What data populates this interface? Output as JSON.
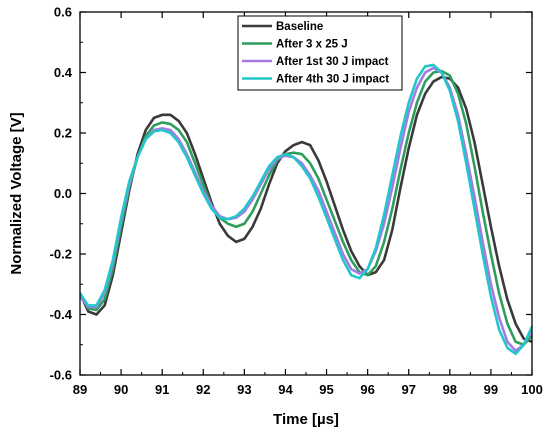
{
  "chart_data": {
    "type": "line",
    "title": "",
    "xlabel": "Time [µs]",
    "ylabel": "Normalized Voltage [V]",
    "xlim": [
      89,
      100
    ],
    "ylim": [
      -0.6,
      0.6
    ],
    "x_ticks": [
      "89",
      "90",
      "91",
      "92",
      "93",
      "94",
      "95",
      "96",
      "97",
      "98",
      "99",
      "100"
    ],
    "y_ticks": [
      "-0.6",
      "-0.4",
      "-0.2",
      "0.0",
      "0.2",
      "0.4",
      "0.6"
    ],
    "grid": false,
    "legend_position": "top-right",
    "series": [
      {
        "name": "Baseline",
        "color": "#3a3a3a",
        "points": [
          [
            89.0,
            -0.33
          ],
          [
            89.2,
            -0.39
          ],
          [
            89.4,
            -0.4
          ],
          [
            89.6,
            -0.37
          ],
          [
            89.8,
            -0.27
          ],
          [
            90.0,
            -0.13
          ],
          [
            90.2,
            0.01
          ],
          [
            90.4,
            0.13
          ],
          [
            90.6,
            0.21
          ],
          [
            90.8,
            0.25
          ],
          [
            91.0,
            0.26
          ],
          [
            91.2,
            0.26
          ],
          [
            91.4,
            0.24
          ],
          [
            91.6,
            0.2
          ],
          [
            91.8,
            0.13
          ],
          [
            92.0,
            0.05
          ],
          [
            92.2,
            -0.03
          ],
          [
            92.4,
            -0.1
          ],
          [
            92.6,
            -0.14
          ],
          [
            92.8,
            -0.16
          ],
          [
            93.0,
            -0.15
          ],
          [
            93.2,
            -0.11
          ],
          [
            93.4,
            -0.05
          ],
          [
            93.6,
            0.03
          ],
          [
            93.8,
            0.1
          ],
          [
            94.0,
            0.14
          ],
          [
            94.2,
            0.16
          ],
          [
            94.4,
            0.17
          ],
          [
            94.6,
            0.16
          ],
          [
            94.8,
            0.11
          ],
          [
            95.0,
            0.04
          ],
          [
            95.2,
            -0.04
          ],
          [
            95.4,
            -0.12
          ],
          [
            95.6,
            -0.19
          ],
          [
            95.8,
            -0.24
          ],
          [
            96.0,
            -0.27
          ],
          [
            96.2,
            -0.26
          ],
          [
            96.4,
            -0.22
          ],
          [
            96.6,
            -0.12
          ],
          [
            96.8,
            0.02
          ],
          [
            97.0,
            0.15
          ],
          [
            97.2,
            0.26
          ],
          [
            97.4,
            0.33
          ],
          [
            97.6,
            0.37
          ],
          [
            97.8,
            0.385
          ],
          [
            98.0,
            0.38
          ],
          [
            98.2,
            0.35
          ],
          [
            98.4,
            0.28
          ],
          [
            98.6,
            0.17
          ],
          [
            98.8,
            0.03
          ],
          [
            99.0,
            -0.11
          ],
          [
            99.2,
            -0.24
          ],
          [
            99.4,
            -0.35
          ],
          [
            99.6,
            -0.43
          ],
          [
            99.8,
            -0.48
          ],
          [
            100.0,
            -0.49
          ]
        ]
      },
      {
        "name": "After 3 x 25 J",
        "color": "#2e9e5b",
        "points": [
          [
            89.0,
            -0.33
          ],
          [
            89.2,
            -0.38
          ],
          [
            89.4,
            -0.385
          ],
          [
            89.6,
            -0.35
          ],
          [
            89.8,
            -0.25
          ],
          [
            90.0,
            -0.11
          ],
          [
            90.2,
            0.02
          ],
          [
            90.4,
            0.12
          ],
          [
            90.6,
            0.19
          ],
          [
            90.8,
            0.225
          ],
          [
            91.0,
            0.235
          ],
          [
            91.2,
            0.23
          ],
          [
            91.4,
            0.21
          ],
          [
            91.6,
            0.17
          ],
          [
            91.8,
            0.1
          ],
          [
            92.0,
            0.03
          ],
          [
            92.2,
            -0.04
          ],
          [
            92.4,
            -0.08
          ],
          [
            92.6,
            -0.1
          ],
          [
            92.8,
            -0.11
          ],
          [
            93.0,
            -0.1
          ],
          [
            93.2,
            -0.06
          ],
          [
            93.4,
            0.0
          ],
          [
            93.6,
            0.06
          ],
          [
            93.8,
            0.11
          ],
          [
            94.0,
            0.13
          ],
          [
            94.2,
            0.135
          ],
          [
            94.4,
            0.13
          ],
          [
            94.6,
            0.1
          ],
          [
            94.8,
            0.05
          ],
          [
            95.0,
            -0.02
          ],
          [
            95.2,
            -0.09
          ],
          [
            95.4,
            -0.16
          ],
          [
            95.6,
            -0.22
          ],
          [
            95.8,
            -0.26
          ],
          [
            96.0,
            -0.27
          ],
          [
            96.2,
            -0.24
          ],
          [
            96.4,
            -0.16
          ],
          [
            96.6,
            -0.05
          ],
          [
            96.8,
            0.08
          ],
          [
            97.0,
            0.2
          ],
          [
            97.2,
            0.3
          ],
          [
            97.4,
            0.37
          ],
          [
            97.6,
            0.4
          ],
          [
            97.8,
            0.405
          ],
          [
            98.0,
            0.39
          ],
          [
            98.2,
            0.33
          ],
          [
            98.4,
            0.23
          ],
          [
            98.6,
            0.09
          ],
          [
            98.8,
            -0.06
          ],
          [
            99.0,
            -0.2
          ],
          [
            99.2,
            -0.33
          ],
          [
            99.4,
            -0.43
          ],
          [
            99.6,
            -0.49
          ],
          [
            99.8,
            -0.5
          ],
          [
            100.0,
            -0.47
          ]
        ]
      },
      {
        "name": "After 1st 30 J impact",
        "color": "#a67ae6",
        "points": [
          [
            89.0,
            -0.34
          ],
          [
            89.2,
            -0.375
          ],
          [
            89.4,
            -0.375
          ],
          [
            89.6,
            -0.33
          ],
          [
            89.8,
            -0.23
          ],
          [
            90.0,
            -0.09
          ],
          [
            90.2,
            0.03
          ],
          [
            90.4,
            0.12
          ],
          [
            90.6,
            0.18
          ],
          [
            90.8,
            0.21
          ],
          [
            91.0,
            0.215
          ],
          [
            91.2,
            0.21
          ],
          [
            91.4,
            0.18
          ],
          [
            91.6,
            0.13
          ],
          [
            91.8,
            0.07
          ],
          [
            92.0,
            0.01
          ],
          [
            92.2,
            -0.04
          ],
          [
            92.4,
            -0.075
          ],
          [
            92.6,
            -0.085
          ],
          [
            92.8,
            -0.08
          ],
          [
            93.0,
            -0.06
          ],
          [
            93.2,
            -0.02
          ],
          [
            93.4,
            0.03
          ],
          [
            93.6,
            0.08
          ],
          [
            93.8,
            0.115
          ],
          [
            94.0,
            0.125
          ],
          [
            94.2,
            0.12
          ],
          [
            94.4,
            0.1
          ],
          [
            94.6,
            0.06
          ],
          [
            94.8,
            0.01
          ],
          [
            95.0,
            -0.06
          ],
          [
            95.2,
            -0.13
          ],
          [
            95.4,
            -0.2
          ],
          [
            95.6,
            -0.25
          ],
          [
            95.8,
            -0.265
          ],
          [
            96.0,
            -0.25
          ],
          [
            96.2,
            -0.19
          ],
          [
            96.4,
            -0.1
          ],
          [
            96.6,
            0.02
          ],
          [
            96.8,
            0.15
          ],
          [
            97.0,
            0.27
          ],
          [
            97.2,
            0.35
          ],
          [
            97.4,
            0.4
          ],
          [
            97.6,
            0.415
          ],
          [
            97.8,
            0.4
          ],
          [
            98.0,
            0.35
          ],
          [
            98.2,
            0.26
          ],
          [
            98.4,
            0.13
          ],
          [
            98.6,
            -0.01
          ],
          [
            98.8,
            -0.16
          ],
          [
            99.0,
            -0.3
          ],
          [
            99.2,
            -0.41
          ],
          [
            99.4,
            -0.49
          ],
          [
            99.6,
            -0.52
          ],
          [
            99.8,
            -0.5
          ],
          [
            100.0,
            -0.45
          ]
        ]
      },
      {
        "name": "After 4th 30 J impact",
        "color": "#22c7c9",
        "points": [
          [
            89.0,
            -0.33
          ],
          [
            89.2,
            -0.37
          ],
          [
            89.4,
            -0.37
          ],
          [
            89.6,
            -0.32
          ],
          [
            89.8,
            -0.22
          ],
          [
            90.0,
            -0.08
          ],
          [
            90.2,
            0.04
          ],
          [
            90.4,
            0.12
          ],
          [
            90.6,
            0.18
          ],
          [
            90.8,
            0.205
          ],
          [
            91.0,
            0.21
          ],
          [
            91.2,
            0.2
          ],
          [
            91.4,
            0.17
          ],
          [
            91.6,
            0.12
          ],
          [
            91.8,
            0.06
          ],
          [
            92.0,
            0.0
          ],
          [
            92.2,
            -0.05
          ],
          [
            92.4,
            -0.08
          ],
          [
            92.6,
            -0.085
          ],
          [
            92.8,
            -0.075
          ],
          [
            93.0,
            -0.05
          ],
          [
            93.2,
            -0.01
          ],
          [
            93.4,
            0.04
          ],
          [
            93.6,
            0.09
          ],
          [
            93.8,
            0.12
          ],
          [
            94.0,
            0.13
          ],
          [
            94.2,
            0.12
          ],
          [
            94.4,
            0.09
          ],
          [
            94.6,
            0.05
          ],
          [
            94.8,
            -0.01
          ],
          [
            95.0,
            -0.08
          ],
          [
            95.2,
            -0.15
          ],
          [
            95.4,
            -0.22
          ],
          [
            95.6,
            -0.27
          ],
          [
            95.8,
            -0.28
          ],
          [
            96.0,
            -0.25
          ],
          [
            96.2,
            -0.18
          ],
          [
            96.4,
            -0.07
          ],
          [
            96.6,
            0.06
          ],
          [
            96.8,
            0.19
          ],
          [
            97.0,
            0.3
          ],
          [
            97.2,
            0.38
          ],
          [
            97.4,
            0.42
          ],
          [
            97.6,
            0.425
          ],
          [
            97.8,
            0.4
          ],
          [
            98.0,
            0.34
          ],
          [
            98.2,
            0.24
          ],
          [
            98.4,
            0.1
          ],
          [
            98.6,
            -0.05
          ],
          [
            98.8,
            -0.2
          ],
          [
            99.0,
            -0.34
          ],
          [
            99.2,
            -0.45
          ],
          [
            99.4,
            -0.51
          ],
          [
            99.6,
            -0.53
          ],
          [
            99.8,
            -0.5
          ],
          [
            100.0,
            -0.44
          ]
        ]
      }
    ]
  }
}
